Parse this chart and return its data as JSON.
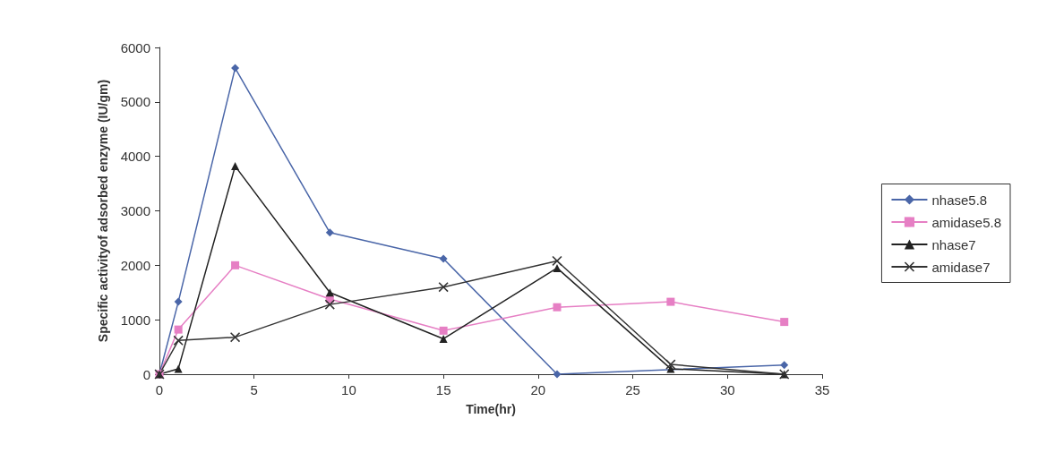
{
  "chart_data": {
    "type": "line",
    "xlabel": "Time(hr)",
    "ylabel": "Specific activityof adsorbed enzyme (IU/gm)",
    "x": [
      0,
      1,
      4,
      9,
      15,
      21,
      27,
      33
    ],
    "xlim": [
      0,
      35
    ],
    "xticks": [
      0,
      5,
      10,
      15,
      20,
      25,
      30,
      35
    ],
    "ylim": [
      0,
      6000
    ],
    "yticks": [
      0,
      1000,
      2000,
      3000,
      4000,
      5000,
      6000
    ],
    "grid": false,
    "legend": "right",
    "series": [
      {
        "name": "nhase5.8",
        "color": "#4a66a8",
        "marker": "diamond",
        "values": [
          0,
          1330,
          5620,
          2600,
          2120,
          0,
          null,
          170
        ]
      },
      {
        "name": "amidase5.8",
        "color": "#e67fc4",
        "marker": "square",
        "values": [
          0,
          820,
          2000,
          1380,
          800,
          1230,
          1330,
          960
        ]
      },
      {
        "name": "nhase7",
        "color": "#222222",
        "marker": "triangle",
        "values": [
          0,
          100,
          3820,
          1500,
          650,
          1950,
          100,
          0
        ]
      },
      {
        "name": "amidase7",
        "color": "#333333",
        "marker": "cross",
        "values": [
          0,
          620,
          680,
          1280,
          1600,
          2080,
          180,
          0
        ]
      }
    ]
  }
}
